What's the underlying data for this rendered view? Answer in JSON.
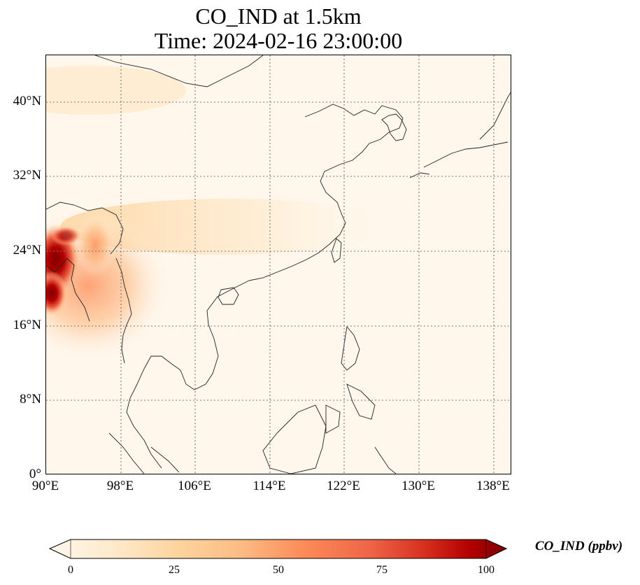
{
  "title": {
    "line1": "CO_IND at 1.5km",
    "line2": "Time: 2024-02-16 23:00:00"
  },
  "map": {
    "extent": {
      "lon": [
        90,
        140
      ],
      "lat": [
        0,
        45
      ]
    },
    "gridlines": "dotted"
  },
  "axes": {
    "lat_ticks": [
      "40°N",
      "32°N",
      "24°N",
      "16°N",
      "8°N",
      "0°"
    ],
    "lon_ticks": [
      "90°E",
      "98°E",
      "106°E",
      "114°E",
      "122°E",
      "130°E",
      "138°E"
    ]
  },
  "colorbar": {
    "label": "CO_IND (ppbv)",
    "ticks": [
      "0",
      "25",
      "50",
      "75",
      "100"
    ],
    "colormap": "OrRd",
    "colors": [
      "#fff7ec",
      "#fdd49e",
      "#fc8d59",
      "#d7301f",
      "#7f0000"
    ],
    "range": [
      0,
      100
    ],
    "extend": "both"
  },
  "field": {
    "hotspot": "Myanmar / Bangladesh border (high values near 100 ppbv)",
    "plume": "Eastward plume across southern China around 24–28°N"
  }
}
